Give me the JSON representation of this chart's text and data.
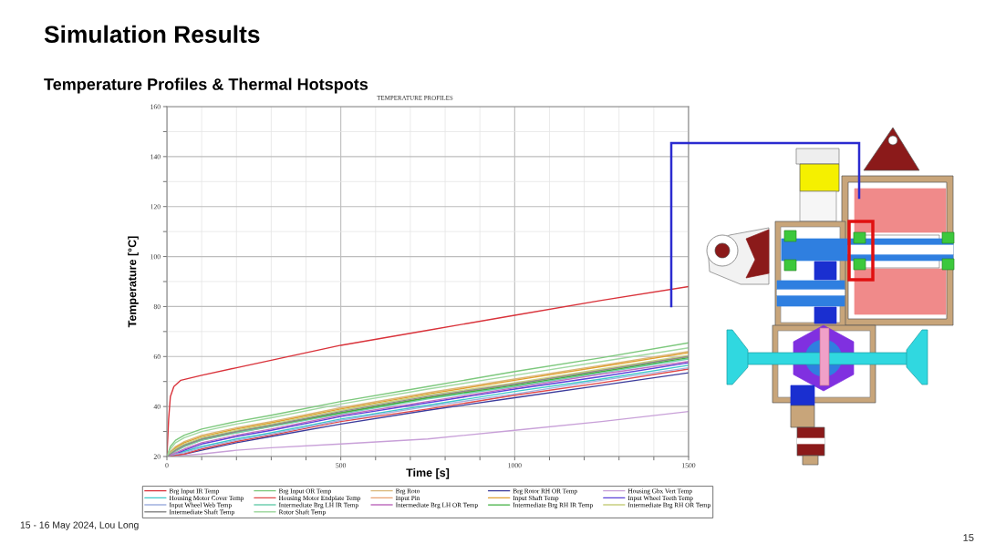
{
  "chart_data": {
    "type": "line",
    "title": "Simulation Results",
    "subtitle": "Temperature Profiles & Thermal Hotspots",
    "xlabel": "Time [s]",
    "ylabel": "Temperature [°C]",
    "annotations": [
      "TEMPERATURE PROFILES",
      "15 - 16 May 2024, Lou Long",
      "15"
    ],
    "x": [
      0,
      10,
      25,
      50,
      100,
      200,
      300,
      500,
      750,
      1000,
      1250,
      1500
    ],
    "xlim": [
      0,
      1500
    ],
    "xticks": [
      0,
      {
        "value": 100,
        "label": null
      },
      {
        "value": 200,
        "label": null
      },
      {
        "value": 300,
        "label": null
      },
      {
        "value": 400,
        "label": null
      },
      500,
      {
        "value": 600,
        "label": null
      },
      {
        "value": 700,
        "label": null
      },
      {
        "value": 800,
        "label": null
      },
      {
        "value": 900,
        "label": null
      },
      1000,
      {
        "value": 1100,
        "label": null
      },
      {
        "value": 1200,
        "label": null
      },
      {
        "value": 1300,
        "label": null
      },
      {
        "value": 1400,
        "label": null
      },
      1500
    ],
    "ylim": [
      20,
      160
    ],
    "yticks": [
      20,
      {
        "value": 30,
        "label": null
      },
      40,
      {
        "value": 50,
        "label": null
      },
      60,
      {
        "value": 70,
        "label": null
      },
      80,
      {
        "value": 90,
        "label": null
      },
      100,
      {
        "value": 110,
        "label": null
      },
      120,
      {
        "value": 130,
        "label": null
      },
      140,
      {
        "value": 150,
        "label": null
      },
      160
    ],
    "grid": true,
    "legend": "bottom",
    "series": [
      {
        "name": "Brg Input IR Temp",
        "color": "#d9323a",
        "x": [
          0,
          5,
          10,
          20,
          40,
          100,
          200,
          300,
          500,
          750,
          1000,
          1250,
          1500
        ],
        "values": [
          20,
          35,
          44,
          48,
          50.5,
          52.5,
          55.5,
          58.5,
          64.5,
          70.5,
          76.5,
          82.5,
          88
        ]
      },
      {
        "name": "Brg Input OR Temp",
        "color": "#7cc87c",
        "values": [
          20,
          24,
          26.5,
          28.5,
          31,
          34,
          36.5,
          42,
          48,
          54,
          59.5,
          65.5
        ]
      },
      {
        "name": "Brg Roto",
        "color": "#d9b77a",
        "values": [
          20,
          22,
          24,
          26,
          28.5,
          31.5,
          34,
          39.5,
          45.5,
          51,
          56.5,
          62
        ]
      },
      {
        "name": "Brg Rotor RH OR Temp",
        "color": "#3c3c9c",
        "values": [
          20,
          20,
          20.5,
          21,
          22.5,
          25.5,
          28,
          33,
          38.5,
          43.5,
          48.5,
          53.5
        ]
      },
      {
        "name": "Housing Gbx Vert Temp",
        "color": "#c8a0d8",
        "values": [
          20,
          20,
          20,
          20.5,
          21,
          22.5,
          23.5,
          25,
          27,
          30.5,
          34,
          38
        ]
      },
      {
        "name": "Housing Motor Cover Temp",
        "color": "#3cc8c8",
        "values": [
          20,
          20.5,
          21,
          22,
          24,
          27,
          29.5,
          35,
          40.5,
          46,
          51,
          56.5
        ]
      },
      {
        "name": "Housing Motor Endplate Temp",
        "color": "#e04848",
        "values": [
          20,
          20,
          20.5,
          21,
          23,
          26,
          28.5,
          34,
          39,
          44.5,
          49.5,
          55
        ]
      },
      {
        "name": "Input Pin",
        "color": "#e8a070",
        "values": [
          20,
          21,
          22.5,
          24,
          26.5,
          29.5,
          32,
          37.5,
          43.5,
          49,
          54.5,
          60
        ]
      },
      {
        "name": "Input Shaft Temp",
        "color": "#e0a030",
        "values": [
          20,
          21.5,
          23.5,
          25.5,
          28,
          31,
          33.5,
          39,
          45,
          50.5,
          56,
          61.5
        ]
      },
      {
        "name": "Input Wheel Teeth Temp",
        "color": "#5a40d8",
        "values": [
          20,
          20.5,
          21,
          22.5,
          25,
          28,
          30.5,
          36,
          41.5,
          47,
          52,
          57.5
        ]
      },
      {
        "name": "Input Wheel Web Temp",
        "color": "#a0b0e0",
        "values": [
          20,
          20.5,
          21,
          21.5,
          23.5,
          26.5,
          29,
          34.5,
          40,
          45,
          50.5,
          55.5
        ]
      },
      {
        "name": "Intermediate Brg LH IR Temp",
        "color": "#70d0b0",
        "values": [
          20,
          21,
          22,
          24,
          26.5,
          29.5,
          32,
          37,
          43,
          48,
          53.5,
          59
        ]
      },
      {
        "name": "Intermediate Brg LH OR Temp",
        "color": "#c070c0",
        "values": [
          20,
          20.5,
          21.5,
          23,
          25.5,
          28.5,
          31,
          36.5,
          42,
          47.5,
          53,
          58
        ]
      },
      {
        "name": "Intermediate Brg RH IR Temp",
        "color": "#40b040",
        "values": [
          20,
          21.5,
          23,
          24.5,
          27,
          30,
          32.5,
          37.5,
          43.5,
          48.5,
          54,
          59.5
        ]
      },
      {
        "name": "Intermediate Brg RH OR Temp",
        "color": "#c8d080",
        "values": [
          20,
          21.5,
          23,
          25,
          27.5,
          30.5,
          33,
          38.5,
          44.5,
          49.5,
          55,
          60.5
        ]
      },
      {
        "name": "Intermediate Shaft Temp",
        "color": "#8c8c8c",
        "values": [
          20,
          21,
          22.5,
          24.5,
          27,
          30,
          32.5,
          38,
          44,
          49,
          54.5,
          60
        ]
      },
      {
        "name": "Rotor Shaft Temp",
        "color": "#a0d8a0",
        "values": [
          20,
          23,
          25.5,
          27.5,
          30,
          33,
          35.5,
          41,
          47,
          52.5,
          58,
          63.5
        ]
      }
    ]
  }
}
